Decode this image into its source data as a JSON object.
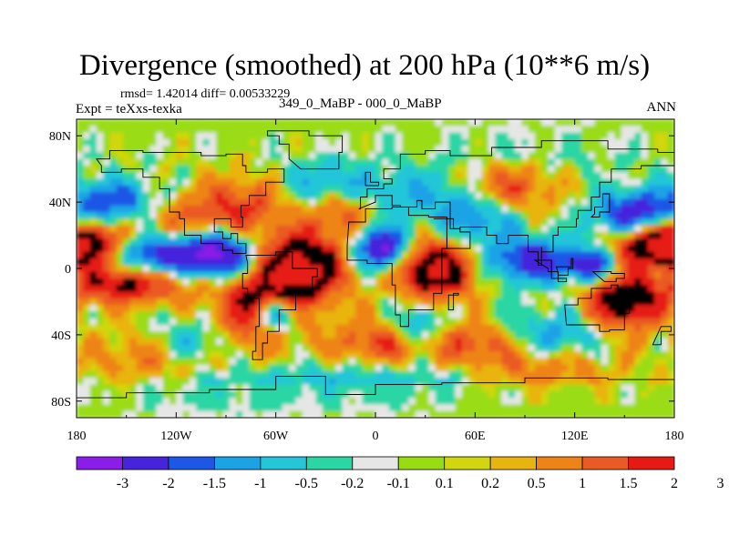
{
  "figure": {
    "title": "Divergence (smoothed) at 200 hPa (10**6 m/s)",
    "stats": "rmsd= 1.42014 diff= 0.00533229",
    "experiment": "Expt = teXxs-texka",
    "comparison": "349_0_MaBP - 000_0_MaBP",
    "season": "ANN"
  },
  "chart_data": {
    "type": "heatmap",
    "title": "Divergence (smoothed) at 200 hPa (10**6 m/s)",
    "xlabel": "",
    "ylabel": "",
    "xlim": [
      -180,
      180
    ],
    "ylim": [
      -90,
      90
    ],
    "x_ticks": [
      {
        "value": -180,
        "label": "180"
      },
      {
        "value": -120,
        "label": "120W"
      },
      {
        "value": -60,
        "label": "60W"
      },
      {
        "value": 0,
        "label": "0"
      },
      {
        "value": 60,
        "label": "60E"
      },
      {
        "value": 120,
        "label": "120E"
      },
      {
        "value": 180,
        "label": "180"
      }
    ],
    "y_ticks": [
      {
        "value": 80,
        "label": "80N"
      },
      {
        "value": 40,
        "label": "40N"
      },
      {
        "value": 0,
        "label": "0"
      },
      {
        "value": -40,
        "label": "40S"
      },
      {
        "value": -80,
        "label": "80S"
      }
    ],
    "colorbar": {
      "levels": [
        "-3",
        "-2",
        "-1.5",
        "-1",
        "-0.5",
        "-0.2",
        "-0.1",
        "0.1",
        "0.2",
        "0.5",
        "1",
        "1.5",
        "2",
        "3"
      ],
      "colors": [
        "#8a1ee8",
        "#4524dc",
        "#1d57e6",
        "#1ba3e6",
        "#24c6d8",
        "#29d6a4",
        "#e6e6e6",
        "#9adc12",
        "#d2d610",
        "#e8b410",
        "#ee8418",
        "#ea5a24",
        "#e61a14"
      ]
    },
    "features": [
      {
        "lon": -45,
        "lat": 0,
        "amp": 3.6,
        "slon": 18,
        "slat": 14
      },
      {
        "lon": 35,
        "lat": 0,
        "amp": 3.4,
        "slon": 16,
        "slat": 12
      },
      {
        "lon": -70,
        "lat": -25,
        "amp": 2.5,
        "slon": 18,
        "slat": 14
      },
      {
        "lon": 150,
        "lat": -20,
        "amp": 2.8,
        "slon": 16,
        "slat": 12
      },
      {
        "lon": 165,
        "lat": 15,
        "amp": 2.8,
        "slon": 16,
        "slat": 9
      },
      {
        "lon": -175,
        "lat": 15,
        "amp": 2.5,
        "slon": 14,
        "slat": 9
      },
      {
        "lon": -150,
        "lat": -10,
        "amp": 2.2,
        "slon": 25,
        "slat": 8
      },
      {
        "lon": -80,
        "lat": 38,
        "amp": 1.5,
        "slon": 20,
        "slat": 12
      },
      {
        "lon": 80,
        "lat": 48,
        "amp": 1.5,
        "slon": 18,
        "slat": 10
      },
      {
        "lon": -20,
        "lat": 35,
        "amp": 1.4,
        "slon": 15,
        "slat": 10
      },
      {
        "lon": 5,
        "lat": -45,
        "amp": 1.5,
        "slon": 22,
        "slat": 10
      },
      {
        "lon": 60,
        "lat": -45,
        "amp": 1.2,
        "slon": 18,
        "slat": 8
      },
      {
        "lon": -130,
        "lat": -55,
        "amp": 1.0,
        "slon": 30,
        "slat": 12
      },
      {
        "lon": 100,
        "lat": -60,
        "amp": 0.9,
        "slon": 30,
        "slat": 10
      },
      {
        "lon": -120,
        "lat": 30,
        "amp": 0.9,
        "slon": 20,
        "slat": 10
      },
      {
        "lon": -95,
        "lat": 8,
        "amp": -3.5,
        "slon": 15,
        "slat": 9
      },
      {
        "lon": -130,
        "lat": 8,
        "amp": -2.5,
        "slon": 15,
        "slat": 8
      },
      {
        "lon": 5,
        "lat": 12,
        "amp": -3.3,
        "slon": 12,
        "slat": 9
      },
      {
        "lon": 95,
        "lat": 5,
        "amp": -2.6,
        "slon": 18,
        "slat": 9
      },
      {
        "lon": 130,
        "lat": 2,
        "amp": -2.4,
        "slon": 10,
        "slat": 7
      },
      {
        "lon": 155,
        "lat": 32,
        "amp": -2.6,
        "slon": 16,
        "slat": 10
      },
      {
        "lon": -160,
        "lat": 40,
        "amp": -2.0,
        "slon": 20,
        "slat": 9
      },
      {
        "lon": -60,
        "lat": -28,
        "amp": -3.0,
        "slon": 10,
        "slat": 8
      },
      {
        "lon": -110,
        "lat": -45,
        "amp": -1.2,
        "slon": 18,
        "slat": 10
      },
      {
        "lon": 25,
        "lat": -35,
        "amp": -1.5,
        "slon": 10,
        "slat": 10
      },
      {
        "lon": 110,
        "lat": -40,
        "amp": -1.2,
        "slon": 20,
        "slat": 10
      },
      {
        "lon": 60,
        "lat": 30,
        "amp": -1.5,
        "slon": 18,
        "slat": 12
      },
      {
        "lon": -30,
        "lat": 50,
        "amp": -1.2,
        "slon": 20,
        "slat": 10
      },
      {
        "lon": 20,
        "lat": 45,
        "amp": -0.9,
        "slon": 25,
        "slat": 10
      },
      {
        "lon": -100,
        "lat": -75,
        "amp": -0.8,
        "slon": 40,
        "slat": 10
      },
      {
        "lon": 0,
        "lat": -70,
        "amp": -0.9,
        "slon": 40,
        "slat": 10
      },
      {
        "lon": 90,
        "lat": 75,
        "amp": -0.4,
        "slon": 60,
        "slat": 10
      }
    ],
    "continents": [
      [
        [
          -168,
          66
        ],
        [
          -160,
          71
        ],
        [
          -140,
          70
        ],
        [
          -125,
          70
        ],
        [
          -105,
          68
        ],
        [
          -90,
          69
        ],
        [
          -80,
          62
        ],
        [
          -78,
          58
        ],
        [
          -65,
          60
        ],
        [
          -55,
          52
        ],
        [
          -66,
          44
        ],
        [
          -76,
          38
        ],
        [
          -81,
          31
        ],
        [
          -80,
          25
        ],
        [
          -87,
          30
        ],
        [
          -97,
          27
        ],
        [
          -97,
          22
        ],
        [
          -92,
          18
        ],
        [
          -87,
          21
        ],
        [
          -83,
          15
        ],
        [
          -78,
          9
        ],
        [
          -86,
          11
        ],
        [
          -92,
          15
        ],
        [
          -105,
          20
        ],
        [
          -115,
          30
        ],
        [
          -118,
          34
        ],
        [
          -124,
          40
        ],
        [
          -124,
          48
        ],
        [
          -130,
          55
        ],
        [
          -140,
          60
        ],
        [
          -153,
          58
        ],
        [
          -165,
          62
        ]
      ],
      [
        [
          -45,
          60
        ],
        [
          -22,
          70
        ],
        [
          -20,
          80
        ],
        [
          -40,
          83
        ],
        [
          -65,
          80
        ],
        [
          -58,
          75
        ],
        [
          -52,
          66
        ]
      ],
      [
        [
          -78,
          8
        ],
        [
          -60,
          10
        ],
        [
          -50,
          0
        ],
        [
          -35,
          -5
        ],
        [
          -38,
          -15
        ],
        [
          -48,
          -25
        ],
        [
          -58,
          -38
        ],
        [
          -65,
          -45
        ],
        [
          -68,
          -55
        ],
        [
          -74,
          -50
        ],
        [
          -72,
          -35
        ],
        [
          -70,
          -18
        ],
        [
          -77,
          -12
        ],
        [
          -80,
          -3
        ],
        [
          -77,
          3
        ]
      ],
      [
        [
          -16,
          28
        ],
        [
          -6,
          36
        ],
        [
          10,
          37
        ],
        [
          20,
          32
        ],
        [
          32,
          31
        ],
        [
          43,
          12
        ],
        [
          51,
          12
        ],
        [
          40,
          -5
        ],
        [
          40,
          -15
        ],
        [
          35,
          -25
        ],
        [
          20,
          -35
        ],
        [
          15,
          -28
        ],
        [
          12,
          -10
        ],
        [
          10,
          3
        ],
        [
          -5,
          5
        ],
        [
          -17,
          14
        ]
      ],
      [
        [
          -10,
          36
        ],
        [
          -9,
          43
        ],
        [
          -5,
          48
        ],
        [
          5,
          51
        ],
        [
          10,
          54
        ],
        [
          5,
          60
        ],
        [
          15,
          69
        ],
        [
          30,
          71
        ],
        [
          45,
          68
        ],
        [
          70,
          73
        ],
        [
          100,
          77
        ],
        [
          140,
          72
        ],
        [
          170,
          70
        ],
        [
          180,
          68
        ],
        [
          180,
          62
        ],
        [
          160,
          60
        ],
        [
          142,
          52
        ],
        [
          135,
          43
        ],
        [
          130,
          35
        ],
        [
          122,
          30
        ],
        [
          121,
          25
        ],
        [
          110,
          20
        ],
        [
          107,
          10
        ],
        [
          100,
          13
        ],
        [
          100,
          2
        ],
        [
          98,
          10
        ],
        [
          92,
          20
        ],
        [
          80,
          15
        ],
        [
          73,
          20
        ],
        [
          67,
          25
        ],
        [
          57,
          25
        ],
        [
          51,
          24
        ],
        [
          45,
          40
        ],
        [
          36,
          36
        ],
        [
          28,
          41
        ],
        [
          25,
          37
        ],
        [
          15,
          38
        ],
        [
          10,
          44
        ],
        [
          0,
          40
        ]
      ],
      [
        [
          35,
          30
        ],
        [
          43,
          12
        ],
        [
          51,
          12
        ],
        [
          57,
          22
        ],
        [
          51,
          24
        ],
        [
          47,
          30
        ]
      ],
      [
        [
          114,
          -22
        ],
        [
          122,
          -18
        ],
        [
          130,
          -12
        ],
        [
          137,
          -12
        ],
        [
          142,
          -10
        ],
        [
          146,
          -19
        ],
        [
          153,
          -27
        ],
        [
          150,
          -37
        ],
        [
          141,
          -38
        ],
        [
          135,
          -34
        ],
        [
          123,
          -34
        ],
        [
          115,
          -34
        ]
      ],
      [
        [
          -180,
          -78
        ],
        [
          -150,
          -75
        ],
        [
          -100,
          -73
        ],
        [
          -60,
          -65
        ],
        [
          -30,
          -76
        ],
        [
          0,
          -70
        ],
        [
          40,
          -69
        ],
        [
          90,
          -66
        ],
        [
          140,
          -67
        ],
        [
          180,
          -78
        ],
        [
          180,
          -90
        ],
        [
          -180,
          -90
        ]
      ],
      [
        [
          96,
          5
        ],
        [
          106,
          -6
        ],
        [
          115,
          -8
        ],
        [
          110,
          -2
        ],
        [
          104,
          0
        ]
      ],
      [
        [
          109,
          1
        ],
        [
          118,
          6
        ],
        [
          119,
          0
        ],
        [
          116,
          -4
        ],
        [
          110,
          -3
        ]
      ],
      [
        [
          131,
          -2
        ],
        [
          142,
          -3
        ],
        [
          150,
          -6
        ],
        [
          145,
          -8
        ],
        [
          138,
          -8
        ]
      ],
      [
        [
          130,
          31
        ],
        [
          135,
          34
        ],
        [
          141,
          40
        ],
        [
          141,
          45
        ],
        [
          137,
          37
        ],
        [
          132,
          33
        ]
      ],
      [
        [
          -6,
          50
        ],
        [
          2,
          52
        ],
        [
          -3,
          58
        ],
        [
          -6,
          56
        ]
      ],
      [
        [
          44,
          -16
        ],
        [
          50,
          -15
        ],
        [
          47,
          -25
        ],
        [
          44,
          -22
        ]
      ],
      [
        [
          172,
          -35
        ],
        [
          178,
          -38
        ],
        [
          172,
          -46
        ],
        [
          167,
          -46
        ]
      ]
    ]
  }
}
